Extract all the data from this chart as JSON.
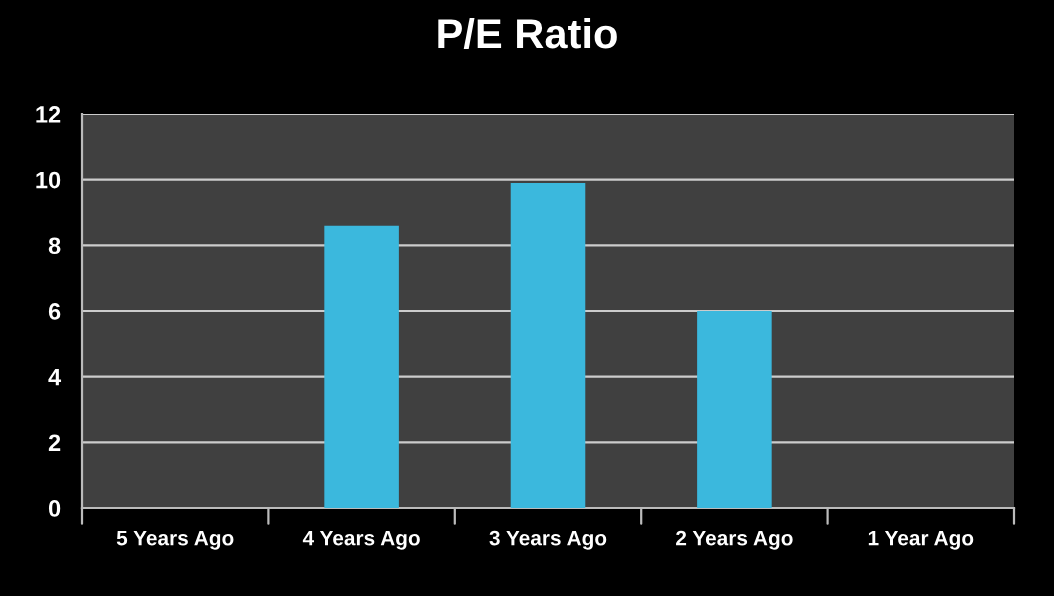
{
  "chart_data": {
    "type": "bar",
    "title": "P/E Ratio",
    "categories": [
      "5 Years Ago",
      "4 Years Ago",
      "3 Years Ago",
      "2 Years Ago",
      "1 Year Ago"
    ],
    "values": [
      null,
      8.6,
      9.9,
      6.0,
      null
    ],
    "color": "#3bb8dd",
    "ylim": [
      0,
      12
    ],
    "yticks": [
      0,
      2,
      4,
      6,
      8,
      10,
      12
    ],
    "grid": "y"
  }
}
